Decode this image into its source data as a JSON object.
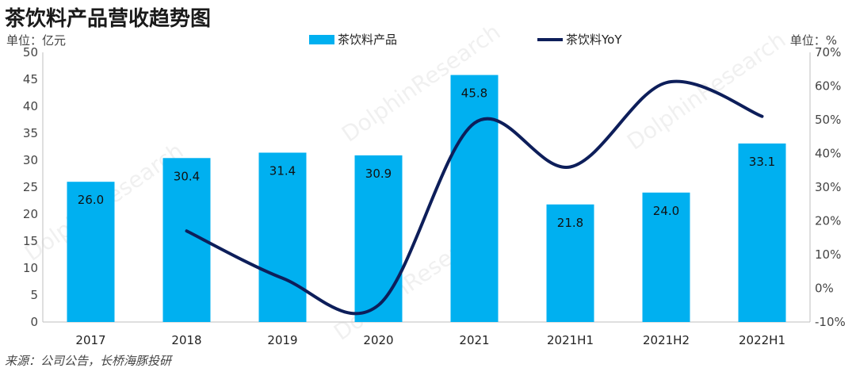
{
  "title": "茶饮料产品营收趋势图",
  "source": "来源：公司公告，长桥海豚投研",
  "watermark": "DolphinResearch",
  "chart_data": {
    "type": "bar",
    "categories": [
      "2017",
      "2018",
      "2019",
      "2020",
      "2021",
      "2021H1",
      "2021H2",
      "2022H1"
    ],
    "series": [
      {
        "name": "茶饮料产品",
        "type": "bar",
        "axis": "left",
        "color": "#00b0f0",
        "values": [
          26.0,
          30.4,
          31.4,
          30.9,
          45.8,
          21.8,
          24.0,
          33.1
        ]
      },
      {
        "name": "茶饮料YoY",
        "type": "line",
        "axis": "right",
        "color": "#0d1e5a",
        "values": [
          null,
          17,
          3,
          -5,
          49,
          36,
          61,
          51
        ]
      }
    ],
    "data_labels": [
      "26.0",
      "30.4",
      "31.4",
      "30.9",
      "45.8",
      "21.8",
      "24.0",
      "33.1"
    ],
    "y_left": {
      "unit": "单位：亿元",
      "range": [
        0,
        50
      ],
      "ticks": [
        "0",
        "5",
        "10",
        "15",
        "20",
        "25",
        "30",
        "35",
        "40",
        "45",
        "50"
      ]
    },
    "y_right": {
      "unit": "单位：%",
      "range": [
        -10,
        70
      ],
      "ticks": [
        "-10%",
        "0%",
        "10%",
        "20%",
        "30%",
        "40%",
        "50%",
        "60%",
        "70%"
      ]
    },
    "legend_position": "top",
    "grid": false
  }
}
